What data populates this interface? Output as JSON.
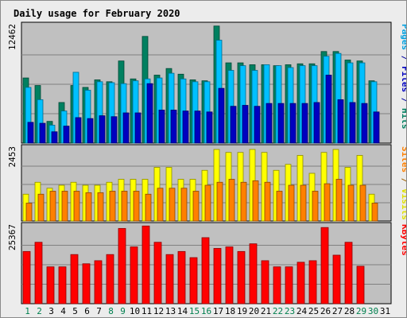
{
  "chart_data": {
    "type": "bar",
    "title": "Daily usage for February 2020",
    "categories": [
      "1",
      "2",
      "3",
      "4",
      "5",
      "6",
      "7",
      "8",
      "9",
      "10",
      "11",
      "12",
      "13",
      "14",
      "15",
      "16",
      "17",
      "18",
      "19",
      "20",
      "21",
      "22",
      "23",
      "24",
      "25",
      "26",
      "27",
      "28",
      "29",
      "30",
      "31"
    ],
    "weekend_days": [
      "1",
      "2",
      "8",
      "9",
      "15",
      "16",
      "22",
      "23",
      "29",
      "30"
    ],
    "panels": [
      {
        "name": "hits-files-pages",
        "ymax_label": "12462",
        "ymax": 12462,
        "right_labels": [
          {
            "text": "Pages",
            "color": "#00a0e0"
          },
          {
            "text": " / ",
            "color": "#0000a0"
          },
          {
            "text": "Files",
            "color": "#0000c0"
          },
          {
            "text": " / ",
            "color": "#0000a0"
          },
          {
            "text": "Hits",
            "color": "#008060"
          }
        ],
        "series": [
          {
            "name": "Hits",
            "color": "#008060",
            "values": [
              6900,
              6100,
              2300,
              4300,
              6100,
              5900,
              6700,
              6500,
              8700,
              6800,
              11300,
              7200,
              7900,
              7300,
              6700,
              6600,
              12400,
              8500,
              8500,
              8300,
              8300,
              8200,
              8300,
              8400,
              8400,
              9700,
              9700,
              8800,
              8700,
              6600,
              0
            ]
          },
          {
            "name": "Files",
            "color": "#00c0ff",
            "values": [
              5900,
              4600,
              1900,
              3400,
              7500,
              5600,
              6500,
              6400,
              6300,
              6600,
              6800,
              6900,
              7400,
              6800,
              6500,
              6500,
              10900,
              7700,
              8200,
              7700,
              8300,
              8200,
              8000,
              8200,
              8200,
              9200,
              9500,
              8500,
              8500,
              6500,
              0
            ]
          },
          {
            "name": "Pages",
            "color": "#0000c0",
            "values": [
              2200,
              2100,
              1200,
              1800,
              2700,
              2600,
              2900,
              2800,
              3200,
              3200,
              6300,
              3500,
              3500,
              3400,
              3400,
              3300,
              5800,
              3900,
              4000,
              3900,
              4200,
              4200,
              4200,
              4200,
              4300,
              7200,
              4600,
              4300,
              4200,
              3300,
              0
            ]
          }
        ]
      },
      {
        "name": "visits-sites",
        "ymax_label": "2453",
        "ymax": 2453,
        "right_labels": [
          {
            "text": "Sites",
            "color": "#ff8000"
          },
          {
            "text": " / ",
            "color": "#a06000"
          },
          {
            "text": "Visits",
            "color": "#e0e000"
          }
        ],
        "series": [
          {
            "name": "Visits",
            "color": "#ffff00",
            "values": [
              900,
              1300,
              1100,
              1200,
              1300,
              1200,
              1200,
              1300,
              1400,
              1400,
              1400,
              1800,
              1800,
              1400,
              1400,
              1700,
              2400,
              2300,
              2300,
              2400,
              2300,
              1700,
              1900,
              2200,
              1600,
              2300,
              2400,
              1800,
              2200,
              900,
              0
            ]
          },
          {
            "name": "Sites",
            "color": "#ff8000",
            "values": [
              600,
              900,
              1000,
              1000,
              1000,
              950,
              950,
              1000,
              1000,
              1000,
              900,
              1100,
              1100,
              1100,
              1000,
              1200,
              1300,
              1400,
              1300,
              1350,
              1300,
              1000,
              1200,
              1200,
              1000,
              1250,
              1400,
              1200,
              1200,
              600,
              0
            ]
          }
        ]
      },
      {
        "name": "kbytes",
        "ymax_label": "25367",
        "ymax": 25367,
        "right_labels": [
          {
            "text": "KBytes",
            "color": "#ff0000"
          }
        ],
        "series": [
          {
            "name": "KBytes",
            "color": "#ff0000",
            "values": [
              17000,
              20000,
              12000,
              12000,
              16000,
              13000,
              14000,
              16000,
              24500,
              18500,
              25300,
              20000,
              16000,
              17000,
              15000,
              21500,
              18000,
              18500,
              17000,
              19500,
              14000,
              12000,
              12000,
              13500,
              14000,
              24800,
              15800,
              20000,
              12200,
              0,
              0
            ]
          }
        ]
      }
    ]
  },
  "colors": {
    "background": "#ececec",
    "plot_background": "#c0c0c0",
    "gridline": "#808080",
    "title": "#0000c0",
    "day_label": "#000000",
    "weekend_label": "#00804f"
  }
}
